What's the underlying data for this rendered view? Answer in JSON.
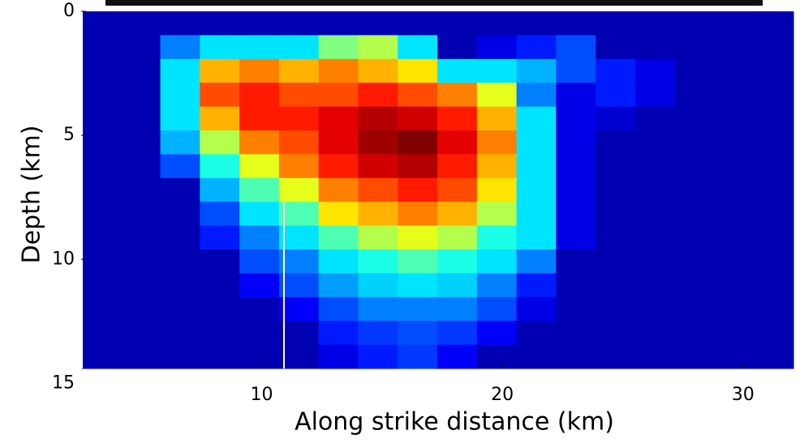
{
  "chart_data": {
    "type": "heatmap",
    "xlabel": "Along strike distance (km)",
    "ylabel": "Depth (km)",
    "xlim": [
      2.5,
      32.1
    ],
    "xticks": [
      10,
      20,
      30
    ],
    "ylim": [
      0,
      14.4
    ],
    "yticks": [
      0,
      5,
      10,
      15
    ],
    "y_inverted": true,
    "colormap": "jet",
    "zlim": [
      0,
      1
    ],
    "z": [
      [
        0.05,
        0.05,
        0.05,
        0.05,
        0.05,
        0.05,
        0.05,
        0.05,
        0.05,
        0.05,
        0.05,
        0.05,
        0.05,
        0.05,
        0.05,
        0.05,
        0.05,
        0.05
      ],
      [
        0.05,
        0.05,
        0.25,
        0.35,
        0.35,
        0.35,
        0.5,
        0.55,
        0.35,
        0.05,
        0.1,
        0.15,
        0.2,
        0.05,
        0.05,
        0.05,
        0.05,
        0.05
      ],
      [
        0.05,
        0.05,
        0.35,
        0.7,
        0.75,
        0.7,
        0.75,
        0.7,
        0.65,
        0.35,
        0.35,
        0.3,
        0.2,
        0.15,
        0.1,
        0.05,
        0.05,
        0.05
      ],
      [
        0.05,
        0.05,
        0.35,
        0.8,
        0.85,
        0.8,
        0.8,
        0.85,
        0.8,
        0.75,
        0.6,
        0.25,
        0.1,
        0.15,
        0.1,
        0.05,
        0.05,
        0.05
      ],
      [
        0.05,
        0.05,
        0.35,
        0.7,
        0.85,
        0.85,
        0.9,
        0.95,
        0.92,
        0.85,
        0.7,
        0.35,
        0.1,
        0.08,
        0.05,
        0.05,
        0.05,
        0.05
      ],
      [
        0.05,
        0.05,
        0.3,
        0.55,
        0.75,
        0.8,
        0.9,
        0.97,
        1.0,
        0.9,
        0.75,
        0.35,
        0.1,
        0.05,
        0.05,
        0.05,
        0.05,
        0.05
      ],
      [
        0.05,
        0.05,
        0.2,
        0.4,
        0.6,
        0.75,
        0.85,
        0.92,
        0.95,
        0.85,
        0.7,
        0.35,
        0.1,
        0.05,
        0.05,
        0.05,
        0.05,
        0.05
      ],
      [
        0.05,
        0.05,
        0.05,
        0.3,
        0.45,
        0.6,
        0.75,
        0.8,
        0.85,
        0.8,
        0.65,
        0.35,
        0.1,
        0.05,
        0.05,
        0.05,
        0.05,
        0.05
      ],
      [
        0.05,
        0.05,
        0.05,
        0.2,
        0.35,
        0.45,
        0.65,
        0.7,
        0.75,
        0.7,
        0.55,
        0.35,
        0.1,
        0.05,
        0.05,
        0.05,
        0.05,
        0.05
      ],
      [
        0.05,
        0.05,
        0.05,
        0.15,
        0.25,
        0.35,
        0.45,
        0.55,
        0.6,
        0.55,
        0.4,
        0.35,
        0.1,
        0.05,
        0.05,
        0.05,
        0.05,
        0.05
      ],
      [
        0.05,
        0.05,
        0.05,
        0.05,
        0.2,
        0.25,
        0.35,
        0.4,
        0.45,
        0.4,
        0.35,
        0.25,
        0.05,
        0.05,
        0.05,
        0.05,
        0.05,
        0.05
      ],
      [
        0.05,
        0.05,
        0.05,
        0.05,
        0.12,
        0.2,
        0.28,
        0.33,
        0.35,
        0.33,
        0.25,
        0.15,
        0.05,
        0.05,
        0.05,
        0.05,
        0.05,
        0.05
      ],
      [
        0.05,
        0.05,
        0.05,
        0.05,
        0.05,
        0.12,
        0.2,
        0.25,
        0.25,
        0.25,
        0.2,
        0.1,
        0.05,
        0.05,
        0.05,
        0.05,
        0.05,
        0.05
      ],
      [
        0.05,
        0.05,
        0.05,
        0.05,
        0.05,
        0.05,
        0.15,
        0.18,
        0.2,
        0.18,
        0.12,
        0.05,
        0.05,
        0.05,
        0.05,
        0.05,
        0.05,
        0.05
      ],
      [
        0.05,
        0.05,
        0.05,
        0.05,
        0.05,
        0.05,
        0.1,
        0.15,
        0.18,
        0.12,
        0.05,
        0.05,
        0.05,
        0.05,
        0.05,
        0.05,
        0.05,
        0.05
      ]
    ]
  }
}
